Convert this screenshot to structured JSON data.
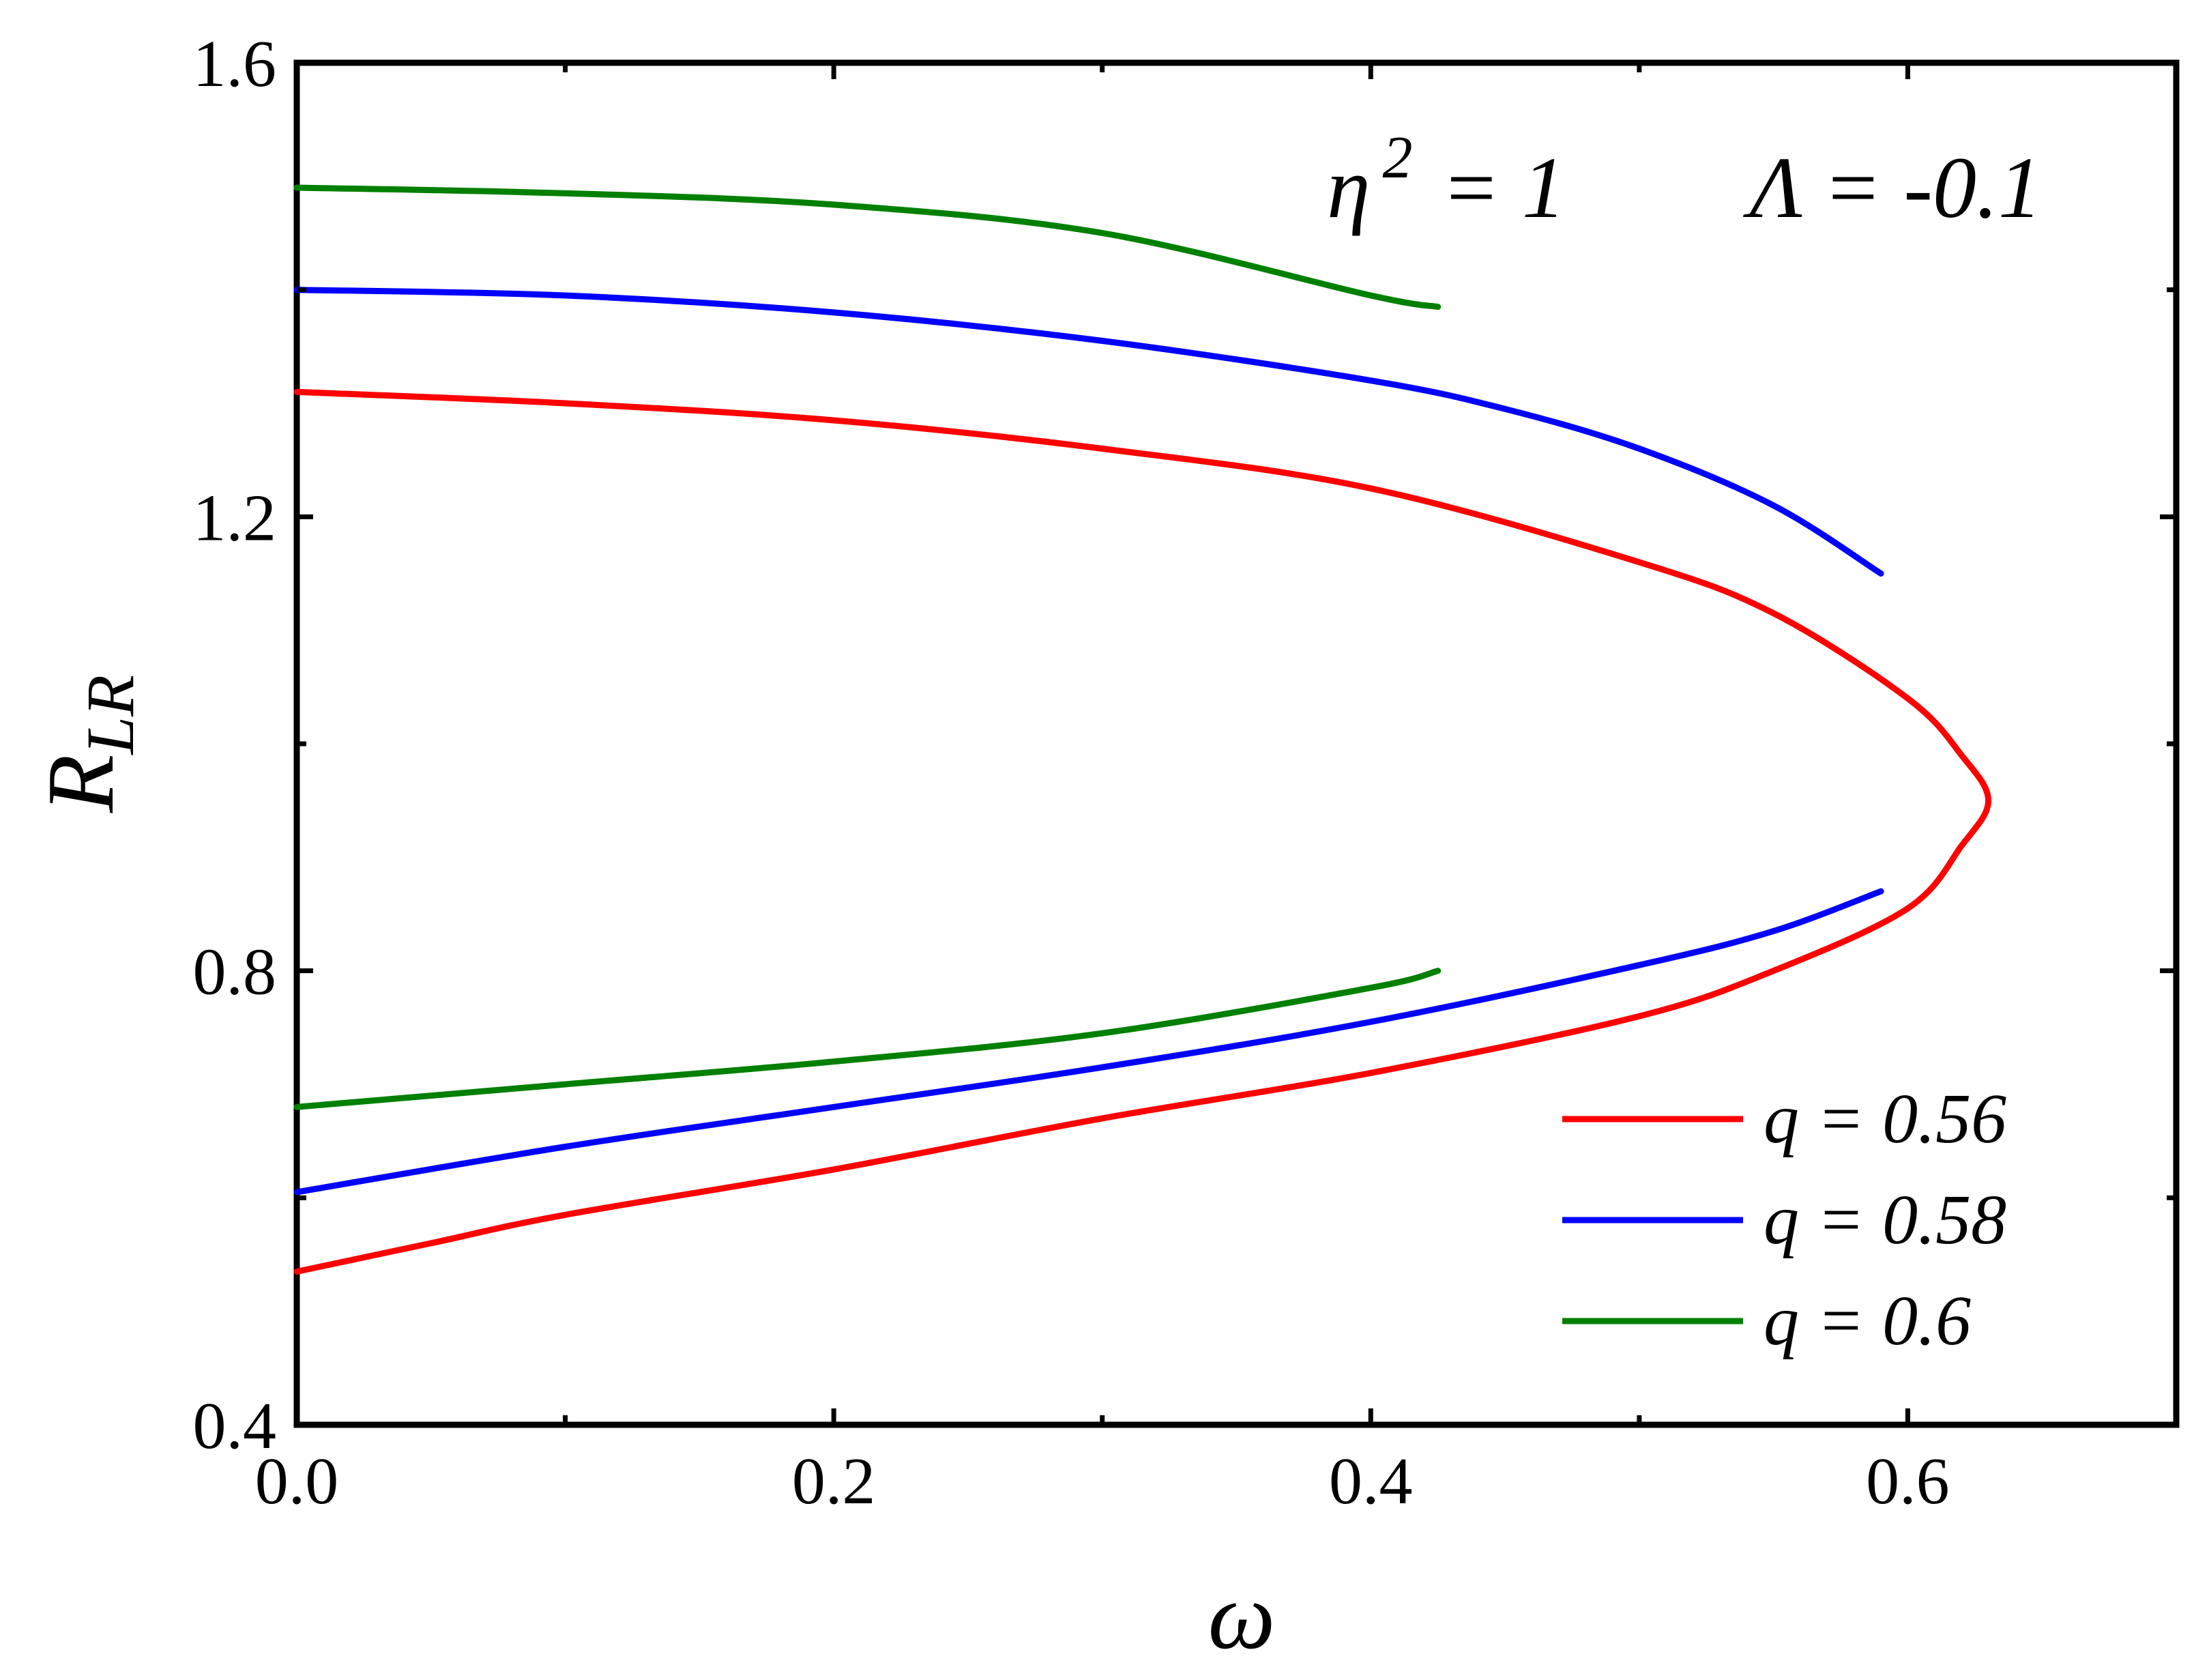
{
  "chart_data": {
    "type": "line",
    "xlabel": "ω",
    "ylabel_main": "R",
    "ylabel_sub": "LR",
    "xlim": [
      0.0,
      0.7
    ],
    "ylim": [
      0.4,
      1.6
    ],
    "x_ticks": [
      "0.0",
      "0.2",
      "0.4",
      "0.6"
    ],
    "x_tick_values": [
      0.0,
      0.2,
      0.4,
      0.6
    ],
    "x_minor_ticks": [
      0.1,
      0.3,
      0.5
    ],
    "y_ticks": [
      "0.4",
      "0.8",
      "1.2",
      "1.6"
    ],
    "y_tick_values": [
      0.4,
      0.8,
      1.2,
      1.6
    ],
    "y_minor_ticks": [
      0.6,
      1.0,
      1.4
    ],
    "annotations": {
      "eta_symbol": "η",
      "eta_exponent": "2",
      "eta_value": " = 1",
      "lambda_text": "Λ = -0.1"
    },
    "legend_position": "bottom-right",
    "series": [
      {
        "name": "q = 0.56",
        "color": "#ff0000",
        "upper": [
          [
            0.0,
            1.31
          ],
          [
            0.1,
            1.3
          ],
          [
            0.2,
            1.285
          ],
          [
            0.3,
            1.26
          ],
          [
            0.4,
            1.225
          ],
          [
            0.5,
            1.16
          ],
          [
            0.55,
            1.115
          ],
          [
            0.6,
            1.04
          ],
          [
            0.62,
            0.99
          ],
          [
            0.63,
            0.95
          ]
        ],
        "lower": [
          [
            0.63,
            0.95
          ],
          [
            0.62,
            0.91
          ],
          [
            0.6,
            0.855
          ],
          [
            0.55,
            0.8
          ],
          [
            0.5,
            0.76
          ],
          [
            0.4,
            0.71
          ],
          [
            0.3,
            0.67
          ],
          [
            0.2,
            0.625
          ],
          [
            0.1,
            0.585
          ],
          [
            0.05,
            0.56
          ],
          [
            0.0,
            0.535
          ]
        ]
      },
      {
        "name": "q = 0.58",
        "color": "#0000ff",
        "upper": [
          [
            0.0,
            1.4
          ],
          [
            0.1,
            1.395
          ],
          [
            0.2,
            1.38
          ],
          [
            0.3,
            1.355
          ],
          [
            0.4,
            1.32
          ],
          [
            0.45,
            1.295
          ],
          [
            0.5,
            1.26
          ],
          [
            0.55,
            1.21
          ],
          [
            0.59,
            1.15
          ]
        ],
        "lower": [
          [
            0.0,
            0.605
          ],
          [
            0.1,
            0.645
          ],
          [
            0.2,
            0.68
          ],
          [
            0.3,
            0.715
          ],
          [
            0.4,
            0.755
          ],
          [
            0.5,
            0.805
          ],
          [
            0.55,
            0.835
          ],
          [
            0.59,
            0.87
          ]
        ]
      },
      {
        "name": "q = 0.6",
        "color": "#008000",
        "upper": [
          [
            0.0,
            1.49
          ],
          [
            0.1,
            1.485
          ],
          [
            0.2,
            1.475
          ],
          [
            0.3,
            1.45
          ],
          [
            0.4,
            1.395
          ],
          [
            0.425,
            1.385
          ]
        ],
        "lower": [
          [
            0.0,
            0.68
          ],
          [
            0.1,
            0.7
          ],
          [
            0.2,
            0.72
          ],
          [
            0.3,
            0.745
          ],
          [
            0.4,
            0.785
          ],
          [
            0.425,
            0.8
          ]
        ]
      }
    ]
  }
}
